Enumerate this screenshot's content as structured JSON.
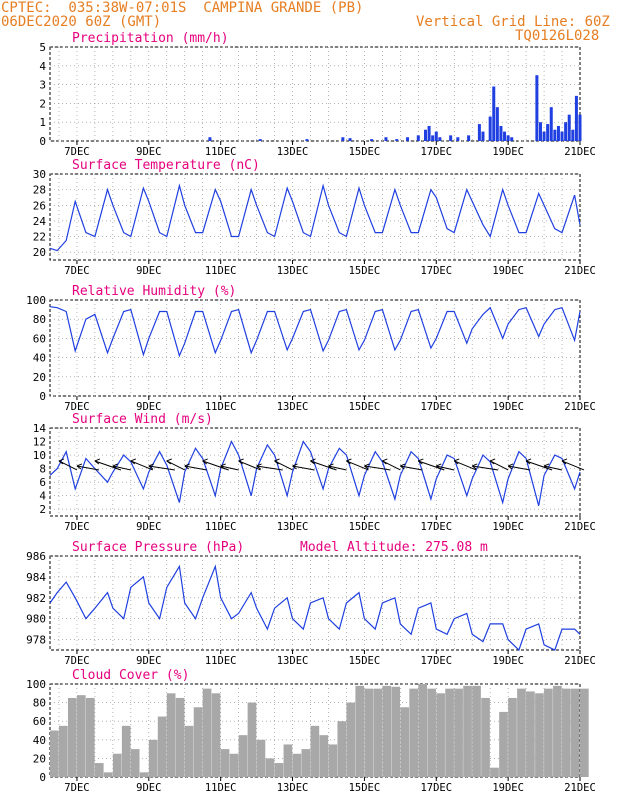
{
  "header": {
    "line1": "CPTEC:  035:38W-07:01S  CAMPINA GRANDE (PB)",
    "line2": "06DEC2020 60Z (GMT)",
    "grid_note": "Vertical Grid Line: 60Z",
    "run_id": "TQ0126L028"
  },
  "colors": {
    "header": "#e67e22",
    "title": "#e6007e",
    "series": "#1f3fe0",
    "wind_arrow": "#000000",
    "cloud": "#a8a8a8"
  },
  "x_ticks": [
    "7DEC",
    "9DEC",
    "11DEC",
    "13DEC",
    "15DEC",
    "17DEC",
    "19DEC",
    "21DEC"
  ],
  "chart_data": [
    {
      "type": "bar",
      "title": "Precipitation (mm/h)",
      "ylim": [
        0,
        5
      ],
      "yticks": [
        0,
        1,
        2,
        3,
        4,
        5
      ],
      "x_range_days": [
        6.25,
        21.0
      ],
      "x": [
        10.7,
        12.1,
        13.4,
        14.4,
        14.6,
        15.2,
        15.6,
        15.9,
        16.2,
        16.5,
        16.7,
        16.8,
        16.9,
        17.0,
        17.1,
        17.4,
        17.6,
        17.9,
        18.2,
        18.3,
        18.5,
        18.6,
        18.7,
        18.8,
        18.9,
        19.0,
        19.1,
        19.8,
        19.9,
        20.0,
        20.1,
        20.2,
        20.3,
        20.4,
        20.5,
        20.6,
        20.7,
        20.8,
        20.9,
        21.0
      ],
      "values": [
        0.2,
        0.1,
        0.1,
        0.2,
        0.15,
        0.1,
        0.2,
        0.1,
        0.2,
        0.3,
        0.6,
        0.8,
        0.3,
        0.5,
        0.2,
        0.3,
        0.2,
        0.3,
        0.9,
        0.5,
        1.3,
        2.9,
        1.8,
        0.8,
        0.5,
        0.3,
        0.2,
        3.5,
        1.0,
        0.5,
        0.9,
        1.8,
        0.6,
        0.8,
        0.5,
        1.0,
        1.4,
        0.6,
        2.4,
        1.4
      ]
    },
    {
      "type": "line",
      "title": "Surface Temperature (nC)",
      "ylim": [
        19,
        30
      ],
      "yticks": [
        20,
        22,
        24,
        26,
        28,
        30
      ],
      "series": [
        {
          "x": [
            6.25,
            6.45,
            6.7,
            6.95,
            7.25,
            7.5,
            7.85,
            8.0,
            8.3,
            8.5,
            8.85,
            9.0,
            9.3,
            9.5,
            9.85,
            10.0,
            10.3,
            10.5,
            10.85,
            11.0,
            11.3,
            11.5,
            11.85,
            12.0,
            12.3,
            12.5,
            12.85,
            13.0,
            13.3,
            13.5,
            13.85,
            14.0,
            14.3,
            14.5,
            14.85,
            15.0,
            15.3,
            15.5,
            15.85,
            16.0,
            16.3,
            16.5,
            16.85,
            17.0,
            17.3,
            17.5,
            17.85,
            18.0,
            18.3,
            18.5,
            18.85,
            19.0,
            19.3,
            19.5,
            19.85,
            20.0,
            20.3,
            20.5,
            20.85,
            21.0
          ],
          "values": [
            20.5,
            20.2,
            21.5,
            26.5,
            22.5,
            22.0,
            28.0,
            26.0,
            22.5,
            22.0,
            28.2,
            26.5,
            22.5,
            22.0,
            28.5,
            26.0,
            22.5,
            22.5,
            28.0,
            26.5,
            22.0,
            22.0,
            28.0,
            26.0,
            22.5,
            22.0,
            28.2,
            26.5,
            22.5,
            22.0,
            28.5,
            26.0,
            22.5,
            22.0,
            28.2,
            26.0,
            22.5,
            22.5,
            28.0,
            26.0,
            22.5,
            22.5,
            28.0,
            27.0,
            23.0,
            22.5,
            28.0,
            26.5,
            23.5,
            22.0,
            28.0,
            26.0,
            22.5,
            22.5,
            27.5,
            26.0,
            23.0,
            22.5,
            27.3,
            23.5
          ]
        }
      ]
    },
    {
      "type": "line",
      "title": "Relative Humidity (%)",
      "ylim": [
        0,
        100
      ],
      "yticks": [
        0,
        20,
        40,
        60,
        80,
        100
      ],
      "series": [
        {
          "x": [
            6.25,
            6.45,
            6.7,
            6.95,
            7.25,
            7.5,
            7.85,
            8.0,
            8.3,
            8.5,
            8.85,
            9.0,
            9.3,
            9.5,
            9.85,
            10.0,
            10.3,
            10.5,
            10.85,
            11.0,
            11.3,
            11.5,
            11.85,
            12.0,
            12.3,
            12.5,
            12.85,
            13.0,
            13.3,
            13.5,
            13.85,
            14.0,
            14.3,
            14.5,
            14.85,
            15.0,
            15.3,
            15.5,
            15.85,
            16.0,
            16.3,
            16.5,
            16.85,
            17.0,
            17.3,
            17.5,
            17.85,
            18.0,
            18.3,
            18.5,
            18.85,
            19.0,
            19.3,
            19.5,
            19.85,
            20.0,
            20.3,
            20.5,
            20.85,
            21.0
          ],
          "values": [
            93,
            92,
            88,
            47,
            80,
            85,
            45,
            60,
            88,
            90,
            43,
            60,
            88,
            88,
            42,
            55,
            88,
            88,
            45,
            58,
            88,
            90,
            45,
            58,
            88,
            88,
            48,
            60,
            88,
            90,
            47,
            58,
            88,
            90,
            48,
            58,
            88,
            90,
            48,
            58,
            88,
            90,
            50,
            60,
            88,
            88,
            55,
            70,
            85,
            92,
            60,
            75,
            90,
            92,
            62,
            75,
            90,
            92,
            58,
            88
          ]
        }
      ]
    },
    {
      "type": "line",
      "title": "Surface Wind (m/s)",
      "ylim": [
        1,
        14
      ],
      "yticks": [
        2,
        4,
        6,
        8,
        10,
        12,
        14
      ],
      "series": [
        {
          "x": [
            6.25,
            6.45,
            6.7,
            6.95,
            7.25,
            7.5,
            7.85,
            8.0,
            8.3,
            8.5,
            8.85,
            9.0,
            9.3,
            9.5,
            9.85,
            10.0,
            10.3,
            10.5,
            10.85,
            11.0,
            11.3,
            11.5,
            11.85,
            12.0,
            12.3,
            12.5,
            12.85,
            13.0,
            13.3,
            13.5,
            13.85,
            14.0,
            14.3,
            14.5,
            14.85,
            15.0,
            15.3,
            15.5,
            15.85,
            16.0,
            16.3,
            16.5,
            16.85,
            17.0,
            17.3,
            17.5,
            17.85,
            18.0,
            18.3,
            18.5,
            18.85,
            19.0,
            19.3,
            19.5,
            19.85,
            20.0,
            20.3,
            20.5,
            20.85,
            21.0
          ],
          "values": [
            7,
            8,
            10.5,
            5,
            9.5,
            8,
            6,
            7.5,
            10,
            9,
            5,
            7.5,
            10.5,
            8.5,
            3,
            7.5,
            11,
            9.5,
            4,
            8,
            12,
            10,
            4,
            8,
            11.5,
            10,
            4,
            7.5,
            12,
            10.5,
            5,
            8,
            11,
            10,
            4,
            7,
            10.5,
            9,
            3.5,
            7,
            10.5,
            9.5,
            3.5,
            6.5,
            10,
            9.5,
            4,
            6.5,
            10,
            9,
            3,
            6.5,
            10.5,
            9.5,
            2.5,
            7,
            10,
            9.5,
            5,
            7.5
          ]
        }
      ],
      "arrows_at_days": [
        6.5,
        7.0,
        7.5,
        8.0,
        8.5,
        9.0,
        9.5,
        10.0,
        10.5,
        11.0,
        11.5,
        12.0,
        12.5,
        13.0,
        13.5,
        14.0,
        14.5,
        15.0,
        15.5,
        16.0,
        16.5,
        17.0,
        17.5,
        18.0,
        18.5,
        19.0,
        19.5,
        20.0,
        20.5
      ]
    },
    {
      "type": "line",
      "title": "Surface Pressure (hPa)",
      "annotation": "Model Altitude: 275.08 m",
      "ylim": [
        977,
        986
      ],
      "yticks": [
        978,
        980,
        982,
        984,
        986
      ],
      "series": [
        {
          "x": [
            6.25,
            6.45,
            6.7,
            6.95,
            7.25,
            7.5,
            7.85,
            8.0,
            8.3,
            8.5,
            8.85,
            9.0,
            9.3,
            9.5,
            9.85,
            10.0,
            10.3,
            10.5,
            10.85,
            11.0,
            11.3,
            11.5,
            11.85,
            12.0,
            12.3,
            12.5,
            12.85,
            13.0,
            13.3,
            13.5,
            13.85,
            14.0,
            14.3,
            14.5,
            14.85,
            15.0,
            15.3,
            15.5,
            15.85,
            16.0,
            16.3,
            16.5,
            16.85,
            17.0,
            17.3,
            17.5,
            17.85,
            18.0,
            18.3,
            18.5,
            18.85,
            19.0,
            19.3,
            19.5,
            19.85,
            20.0,
            20.3,
            20.5,
            20.85,
            21.0
          ],
          "values": [
            981.5,
            982.5,
            983.5,
            982,
            980,
            981,
            982.5,
            981,
            980,
            983,
            984,
            981.5,
            980,
            983,
            985,
            981.5,
            980,
            982,
            985,
            982,
            980,
            980.5,
            982.5,
            981,
            979,
            981,
            982,
            980,
            979,
            981.5,
            982,
            980,
            979,
            981.5,
            982.5,
            980,
            979,
            981.5,
            982,
            979.5,
            978.5,
            981,
            981.5,
            979,
            978.5,
            980,
            980.5,
            978.5,
            977.8,
            979.5,
            979.5,
            978,
            977,
            979,
            979.5,
            977.5,
            977,
            979,
            979,
            978.5
          ]
        }
      ]
    },
    {
      "type": "area",
      "title": "Cloud Cover (%)",
      "ylim": [
        0,
        100
      ],
      "yticks": [
        0,
        20,
        40,
        60,
        80,
        100
      ],
      "series": [
        {
          "x": [
            6.25,
            6.5,
            6.75,
            7.0,
            7.25,
            7.5,
            7.75,
            8.0,
            8.25,
            8.5,
            8.75,
            9.0,
            9.25,
            9.5,
            9.75,
            10.0,
            10.25,
            10.5,
            10.75,
            11.0,
            11.25,
            11.5,
            11.75,
            12.0,
            12.25,
            12.5,
            12.75,
            13.0,
            13.25,
            13.5,
            13.75,
            14.0,
            14.25,
            14.5,
            14.75,
            15.0,
            15.25,
            15.5,
            15.75,
            16.0,
            16.25,
            16.5,
            16.75,
            17.0,
            17.25,
            17.5,
            17.75,
            18.0,
            18.25,
            18.5,
            18.75,
            19.0,
            19.25,
            19.5,
            19.75,
            20.0,
            20.25,
            20.5,
            20.75,
            21.0
          ],
          "values": [
            50,
            55,
            85,
            88,
            85,
            15,
            5,
            25,
            55,
            30,
            5,
            40,
            65,
            90,
            85,
            55,
            75,
            95,
            90,
            30,
            25,
            45,
            80,
            40,
            20,
            15,
            35,
            25,
            30,
            55,
            45,
            35,
            60,
            80,
            98,
            95,
            95,
            98,
            97,
            75,
            95,
            100,
            95,
            90,
            95,
            95,
            98,
            98,
            85,
            10,
            70,
            85,
            95,
            92,
            90,
            95,
            98,
            95,
            95,
            95
          ]
        }
      ]
    }
  ]
}
